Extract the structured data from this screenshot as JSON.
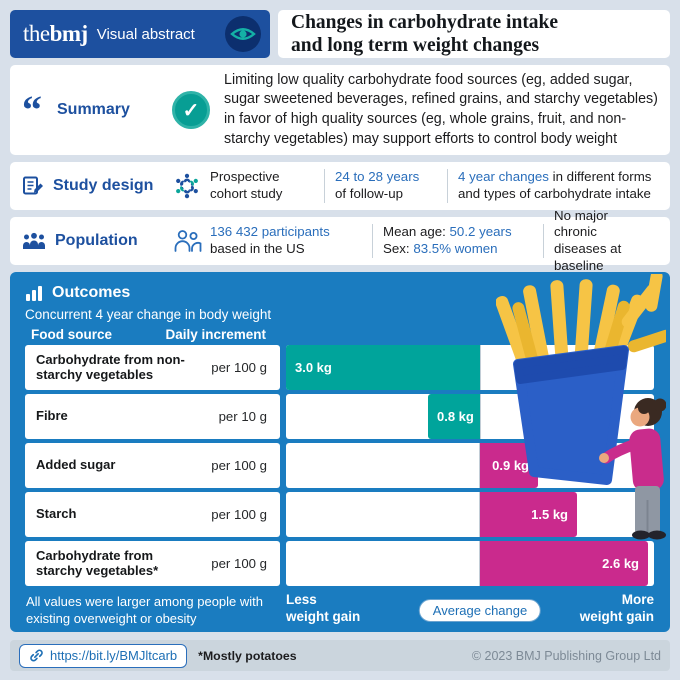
{
  "header": {
    "logo_the": "the",
    "logo_bmj": "bmj",
    "subtitle": "Visual abstract",
    "title_line1": "Changes in carbohydrate intake",
    "title_line2": "and long term weight changes"
  },
  "summary": {
    "label": "Summary",
    "check_glyph": "✓",
    "quote_glyph": "“",
    "text": "Limiting low quality carbohydrate food sources (eg, added sugar, sugar sweetened beverages, refined grains, and starchy vegetables) in favor of high quality sources (eg, whole grains, fruit, and non-starchy vegetables) may support efforts to control body weight"
  },
  "study_design": {
    "label": "Study design",
    "item1": "Prospective cohort study",
    "item2_highlight": "24 to 28 years",
    "item2_rest": "of follow-up",
    "item3_highlight": "4 year changes",
    "item3_rest": " in different forms and types of carbohydrate intake"
  },
  "population": {
    "label": "Population",
    "participants_highlight": "136 432 participants",
    "participants_rest": "based in the US",
    "age_label": "Mean age: ",
    "age_value": "50.2 years",
    "sex_label": "Sex: ",
    "sex_value": "83.5% women",
    "item3": "No major chronic diseases at baseline"
  },
  "outcomes": {
    "label": "Outcomes",
    "subtitle": "Concurrent 4 year change in body weight",
    "col1": "Food source",
    "col2": "Daily increment",
    "footnote": "All values were larger among people with existing overweight or obesity",
    "axis_less_line1": "Less",
    "axis_less_line2": "weight gain",
    "axis_center": "Average change",
    "axis_more_line1": "More",
    "axis_more_line2": "weight gain"
  },
  "chart_data": {
    "type": "bar",
    "orientation": "horizontal-diverging",
    "title": "Concurrent 4 year change in body weight",
    "unit": "kg",
    "xmax_kg": 3.0,
    "left_label": "Less weight gain",
    "center_label": "Average change",
    "right_label": "More weight gain",
    "legend": {
      "less_color": "#00a49b",
      "more_color": "#ca2a8d"
    },
    "rows": [
      {
        "food_source": "Carbohydrate from non-starchy vegetables",
        "daily_increment": "per 100 g",
        "value": 3.0,
        "label": "3.0 kg",
        "direction": "less"
      },
      {
        "food_source": "Fibre",
        "daily_increment": "per 10 g",
        "value": 0.8,
        "label": "0.8 kg",
        "direction": "less"
      },
      {
        "food_source": "Added sugar",
        "daily_increment": "per 100 g",
        "value": 0.9,
        "label": "0.9 kg",
        "direction": "more"
      },
      {
        "food_source": "Starch",
        "daily_increment": "per 100 g",
        "value": 1.5,
        "label": "1.5 kg",
        "direction": "more"
      },
      {
        "food_source": "Carbohydrate from starchy vegetables*",
        "daily_increment": "per 100 g",
        "value": 2.6,
        "label": "2.6 kg",
        "direction": "more"
      }
    ]
  },
  "footer": {
    "link": "https://bit.ly/BMJltcarb",
    "footnote": "*Mostly potatoes",
    "copyright": "© 2023 BMJ Publishing Group Ltd"
  },
  "colors": {
    "header_blue": "#1d509f",
    "accent_blue": "#2a6ebb",
    "panel_blue": "#1a7cc0",
    "teal": "#00a49b",
    "magenta": "#ca2a8d",
    "frame": "#d8e0ea",
    "footer_gray": "#cbd5dd",
    "fries_yellow": "#f6c445",
    "fries_box_blue": "#2b5fc7"
  }
}
